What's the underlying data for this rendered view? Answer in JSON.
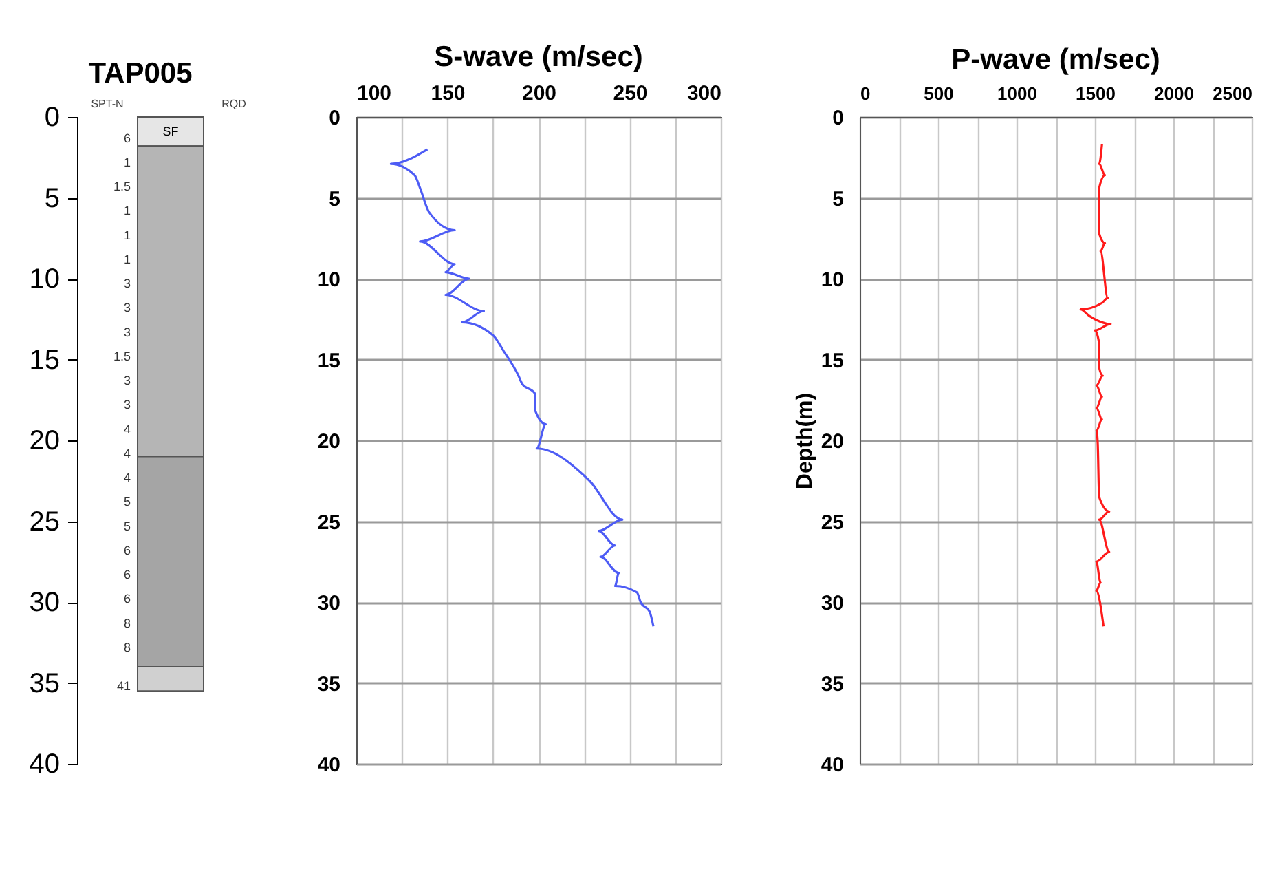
{
  "chart_data": [
    {
      "type": "bar",
      "title": "TAP005",
      "stacked": true,
      "categories": [
        null
      ],
      "ylim": [
        40,
        0
      ],
      "yticks": [
        0,
        5,
        10,
        15,
        20,
        25,
        30,
        35,
        40
      ],
      "series": [
        {
          "name": "SF",
          "color": "#e6e6e6",
          "values": [
            1.8
          ]
        },
        {
          "color": "#b5b5b5",
          "values": [
            19.2
          ]
        },
        {
          "color": "#a5a5a5",
          "values": [
            13
          ]
        },
        {
          "color": "#d0d0d0",
          "values": [
            1.5
          ]
        }
      ],
      "annotations": [
        "SPT-N",
        "RQD",
        "6",
        "1",
        "1.5",
        "1",
        "1",
        "1",
        "3",
        "3",
        "3",
        "1.5",
        "3",
        "3",
        "4",
        "4",
        "4",
        "5",
        "5",
        "6",
        "6",
        "6",
        "8",
        "8",
        "41"
      ]
    },
    {
      "type": "line",
      "title": "S-wave (m/sec)",
      "xlim": [
        100,
        300
      ],
      "xticks": [
        100,
        {
          "value": 125,
          "label": null
        },
        150,
        {
          "value": 175,
          "label": null
        },
        200,
        {
          "value": 225,
          "label": null
        },
        250,
        {
          "value": 275,
          "label": null
        },
        300
      ],
      "ylim": [
        40,
        0
      ],
      "yticks": [
        0,
        5,
        10,
        15,
        20,
        25,
        30,
        35,
        40
      ],
      "grid": true,
      "series": [
        {
          "color": "#4d5cf5",
          "x": [
            139,
            119,
            132,
            135,
            140,
            154,
            135,
            154,
            149,
            162,
            149,
            170,
            158,
            175,
            181,
            189,
            191,
            198,
            198,
            204,
            199,
            228,
            246,
            233,
            242,
            234,
            244,
            242,
            254,
            256,
            261,
            263
          ],
          "values": [
            2.0,
            2.9,
            3.6,
            4.4,
            5.9,
            7.0,
            7.7,
            9.1,
            9.6,
            10.0,
            11.0,
            12.0,
            12.7,
            13.5,
            14.5,
            16.0,
            16.5,
            17.1,
            18.1,
            19.0,
            20.5,
            22.5,
            24.9,
            25.6,
            26.5,
            27.2,
            28.2,
            29.0,
            29.4,
            30.0,
            30.6,
            31.5
          ]
        }
      ]
    },
    {
      "type": "line",
      "title": "P-wave (m/sec)",
      "ylabel": "Depth(m)",
      "xlim": [
        0,
        2500
      ],
      "xticks": [
        0,
        {
          "value": 250,
          "label": null
        },
        500,
        {
          "value": 750,
          "label": null
        },
        1000,
        {
          "value": 1250,
          "label": null
        },
        1500,
        {
          "value": 1750,
          "label": null
        },
        2000,
        {
          "value": 2250,
          "label": null
        },
        2500
      ],
      "ylim": [
        40,
        0
      ],
      "yticks": [
        0,
        5,
        10,
        15,
        20,
        25,
        30,
        35,
        40
      ],
      "grid": true,
      "series": [
        {
          "color": "#ff1a1a",
          "x": [
            1545,
            1527,
            1564,
            1527,
            1527,
            1564,
            1536,
            1582,
            1545,
            1409,
            1464,
            1600,
            1500,
            1527,
            1527,
            1550,
            1510,
            1545,
            1510,
            1545,
            1510,
            1518,
            1527,
            1591,
            1527,
            1591,
            1509,
            1536,
            1509,
            1555
          ],
          "values": [
            1.7,
            2.9,
            3.6,
            4.4,
            7.2,
            7.8,
            8.3,
            11.2,
            11.5,
            11.9,
            12.3,
            12.8,
            13.2,
            14.0,
            15.5,
            16.0,
            16.6,
            17.3,
            18.0,
            18.7,
            19.4,
            20.2,
            23.5,
            24.4,
            24.9,
            26.9,
            27.5,
            28.8,
            29.3,
            31.5
          ]
        }
      ]
    }
  ]
}
